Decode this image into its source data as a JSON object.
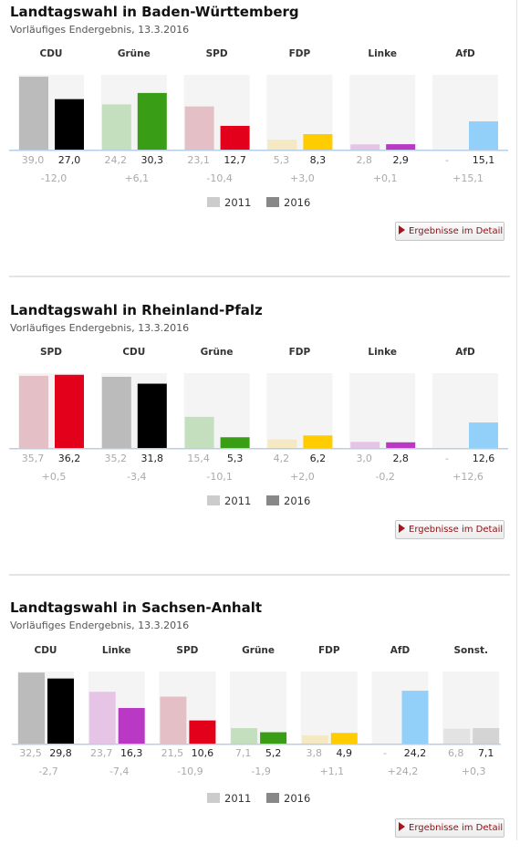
{
  "legend": {
    "y2011": "2011",
    "y2016": "2016"
  },
  "button_label": "Ergebnisse im Detail",
  "colors": {
    "CDU": [
      "#bbbbbb",
      "#000000"
    ],
    "Grüne": [
      "#c4dfbe",
      "#3a9d16"
    ],
    "SPD": [
      "#e4c0c6",
      "#e2001a"
    ],
    "FDP": [
      "#f4e9c2",
      "#ffcc00"
    ],
    "Linke": [
      "#e5c4e5",
      "#b938c4"
    ],
    "AfD": [
      "#cbe7fb",
      "#92cff9"
    ],
    "Sonst.": [
      "#e3e3e3",
      "#d4d4d4"
    ],
    "legend_2011": "#cccccc",
    "legend_2016": "#888888",
    "panel_bg": "#f4f4f4",
    "baseline": "#b7cfe6"
  },
  "chart_data": [
    {
      "type": "bar",
      "title": "Landtagswahl in Baden-Württemberg",
      "subtitle": "Vorläufiges Endergebnis, 13.3.2016",
      "categories": [
        "CDU",
        "Grüne",
        "SPD",
        "FDP",
        "Linke",
        "AfD"
      ],
      "series": [
        {
          "name": "2011",
          "values": [
            39.0,
            24.2,
            23.1,
            5.3,
            2.8,
            null
          ],
          "labels": [
            "39,0",
            "24,2",
            "23,1",
            "5,3",
            "2,8",
            "-"
          ]
        },
        {
          "name": "2016",
          "values": [
            27.0,
            30.3,
            12.7,
            8.3,
            2.9,
            15.1
          ],
          "labels": [
            "27,0",
            "30,3",
            "12,7",
            "8,3",
            "2,9",
            "15,1"
          ]
        }
      ],
      "diff_labels": [
        "-12,0",
        "+6,1",
        "-10,4",
        "+3,0",
        "+0,1",
        "+15,1"
      ],
      "ylim": [
        0,
        40
      ]
    },
    {
      "type": "bar",
      "title": "Landtagswahl in Rheinland-Pfalz",
      "subtitle": "Vorläufiges Endergebnis, 13.3.2016",
      "categories": [
        "SPD",
        "CDU",
        "Grüne",
        "FDP",
        "Linke",
        "AfD"
      ],
      "series": [
        {
          "name": "2011",
          "values": [
            35.7,
            35.2,
            15.4,
            4.2,
            3.0,
            null
          ],
          "labels": [
            "35,7",
            "35,2",
            "15,4",
            "4,2",
            "3,0",
            "-"
          ]
        },
        {
          "name": "2016",
          "values": [
            36.2,
            31.8,
            5.3,
            6.2,
            2.8,
            12.6
          ],
          "labels": [
            "36,2",
            "31,8",
            "5,3",
            "6,2",
            "2,8",
            "12,6"
          ]
        }
      ],
      "diff_labels": [
        "+0,5",
        "-3,4",
        "-10,1",
        "+2,0",
        "-0,2",
        "+12,6"
      ],
      "ylim": [
        0,
        37
      ]
    },
    {
      "type": "bar",
      "title": "Landtagswahl in Sachsen-Anhalt",
      "subtitle": "Vorläufiges Endergebnis, 13.3.2016",
      "categories": [
        "CDU",
        "Linke",
        "SPD",
        "Grüne",
        "FDP",
        "AfD",
        "Sonst."
      ],
      "series": [
        {
          "name": "2011",
          "values": [
            32.5,
            23.7,
            21.5,
            7.1,
            3.8,
            null,
            6.8
          ],
          "labels": [
            "32,5",
            "23,7",
            "21,5",
            "7,1",
            "3,8",
            "-",
            "6,8"
          ]
        },
        {
          "name": "2016",
          "values": [
            29.8,
            16.3,
            10.6,
            5.2,
            4.9,
            24.2,
            7.1
          ],
          "labels": [
            "29,8",
            "16,3",
            "10,6",
            "5,2",
            "4,9",
            "24,2",
            "7,1"
          ]
        }
      ],
      "diff_labels": [
        "-2,7",
        "-7,4",
        "-10,9",
        "-1,9",
        "+1,1",
        "+24,2",
        "+0,3"
      ],
      "ylim": [
        0,
        33
      ]
    }
  ]
}
